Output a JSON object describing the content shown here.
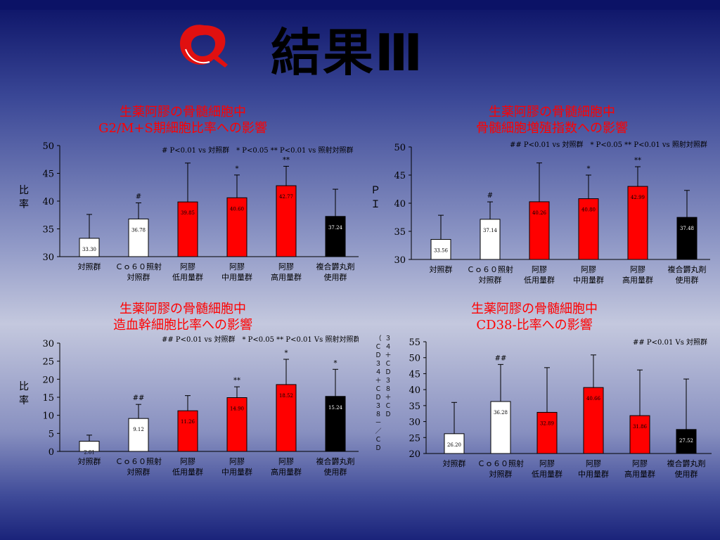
{
  "slide": {
    "title": "結果Ⅲ"
  },
  "colors": {
    "red": "#ff0000",
    "white": "#ffffff",
    "black": "#000000",
    "title_red": "#ff0000"
  },
  "chart_data": [
    {
      "type": "bar",
      "title": "生薬阿膠の骨髄細胞中\nG2/M+S期細胞比率への影響",
      "ylabel": "比率",
      "ylim": [
        30,
        50
      ],
      "yticks": [
        30,
        35,
        40,
        45,
        50
      ],
      "annotation": "# P<0.01 vs 対照群　* P<0.05 ** P<0.01 vs 照射対照群",
      "categories": [
        "対照群",
        "Ｃｏ６０照射\n対照群",
        "阿膠\n低用量群",
        "阿膠\n中用量群",
        "阿膠\n高用量群",
        "複合欝丸剤\n使用群"
      ],
      "values": [
        33.3,
        36.78,
        39.85,
        40.6,
        42.77,
        37.24
      ],
      "value_labels": [
        "33.30",
        "36.78",
        "39.85",
        "40.60",
        "42.77",
        "37.24"
      ],
      "errors": [
        4.3,
        2.9,
        7.0,
        4.1,
        3.5,
        4.9
      ],
      "marks": [
        "",
        "#",
        "",
        "*",
        "**",
        ""
      ],
      "bar_colors": [
        "#ffffff",
        "#ffffff",
        "#ff0000",
        "#ff0000",
        "#ff0000",
        "#000000"
      ]
    },
    {
      "type": "bar",
      "title": "生薬阿膠の骨髄細胞中\n骨髄細胞増殖指数への影響",
      "ylabel": "ＰＩ",
      "ylim": [
        30,
        50
      ],
      "yticks": [
        30,
        35,
        40,
        45,
        50
      ],
      "annotation": "## P<0.01 vs 対照群　* P<0.05 ** P<0.01 vs 照射対照群",
      "categories": [
        "対照群",
        "Ｃｏ６０照射\n対照群",
        "阿膠\n低用量群",
        "阿膠\n中用量群",
        "阿膠\n高用量群",
        "複合欝丸剤\n使用群"
      ],
      "values": [
        33.56,
        37.14,
        40.26,
        40.8,
        42.99,
        37.48
      ],
      "value_labels": [
        "33.56",
        "37.14",
        "40.26",
        "40.80",
        "42.99",
        "37.48"
      ],
      "errors": [
        4.3,
        3.1,
        6.9,
        4.2,
        3.5,
        4.8
      ],
      "marks": [
        "",
        "#",
        "",
        "*",
        "**",
        ""
      ],
      "bar_colors": [
        "#ffffff",
        "#ffffff",
        "#ff0000",
        "#ff0000",
        "#ff0000",
        "#000000"
      ]
    },
    {
      "type": "bar",
      "title": "生薬阿膠の骨髄細胞中\n造血幹細胞比率への影響",
      "ylabel": "比率",
      "ylim": [
        0,
        30
      ],
      "yticks": [
        0,
        5,
        10,
        15,
        20,
        25,
        30
      ],
      "annotation": "## P<0.01 vs 対照群　* P<0.05 ** P<0.01 Vs 照射対照群",
      "categories": [
        "対照群",
        "Ｃｏ６０照射\n対照群",
        "阿膠\n低用量群",
        "阿膠\n中用量群",
        "阿膠\n高用量群",
        "複合欝丸剤\n使用群"
      ],
      "values": [
        2.81,
        9.12,
        11.26,
        14.9,
        18.52,
        15.24
      ],
      "value_labels": [
        "2.81",
        "9.12",
        "11.26",
        "14.90",
        "18.52",
        "15.24"
      ],
      "errors": [
        1.7,
        3.9,
        4.2,
        3.0,
        7.0,
        7.5
      ],
      "marks": [
        "",
        "##",
        "",
        "**",
        "*",
        "*"
      ],
      "bar_colors": [
        "#ffffff",
        "#ffffff",
        "#ff0000",
        "#ff0000",
        "#ff0000",
        "#000000"
      ]
    },
    {
      "type": "bar",
      "title": "生薬阿膠の骨髄細胞中\nCD38-比率への影響",
      "ylabel": "（ＣＤ３４＋ＣＤ３８－／ＣＤ３４＋ＣＤ３８＋ＣＤ",
      "ylim": [
        20,
        55
      ],
      "yticks": [
        20,
        25,
        30,
        35,
        40,
        45,
        50,
        55
      ],
      "annotation": "## P<0.01 Vs 対照群",
      "categories": [
        "対照群",
        "Ｃｏ６０照射\n対照群",
        "阿膠\n低用量群",
        "阿膠\n中用量群",
        "阿膠\n高用量群",
        "複合欝丸剤\n使用群"
      ],
      "values": [
        26.2,
        36.28,
        32.89,
        40.66,
        31.86,
        27.52
      ],
      "value_labels": [
        "26.20",
        "36.28",
        "32.89",
        "40.66",
        "31.86",
        "27.52"
      ],
      "errors": [
        9.8,
        11.6,
        14.0,
        10.2,
        14.3,
        15.8
      ],
      "marks": [
        "",
        "##",
        "",
        "",
        "",
        ""
      ],
      "bar_colors": [
        "#ffffff",
        "#ffffff",
        "#ff0000",
        "#ff0000",
        "#ff0000",
        "#000000"
      ]
    }
  ]
}
